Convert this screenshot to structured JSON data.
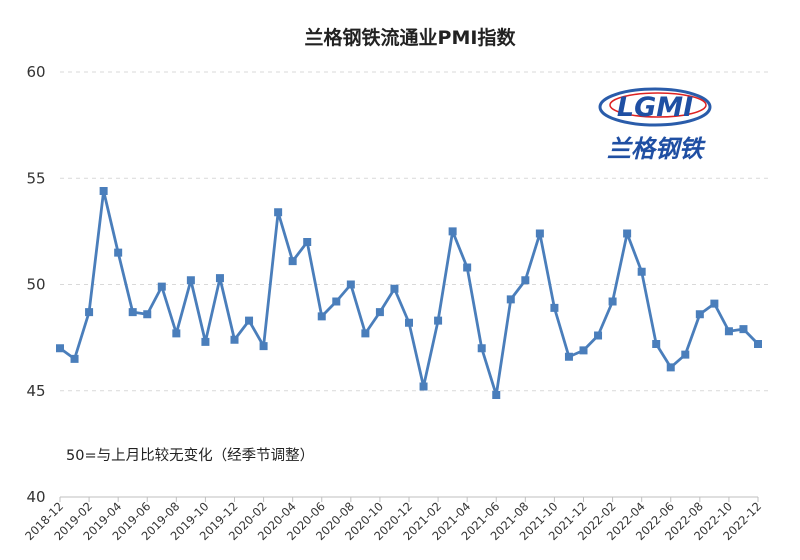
{
  "chart_data": {
    "type": "line",
    "title": "兰格钢铁流通业PMI指数",
    "annotation": "50=与上月比较无变化（经季节调整）",
    "logo_text": "LGMI 兰格钢铁",
    "ylim": [
      40,
      60
    ],
    "yticks": [
      40,
      45,
      50,
      55,
      60
    ],
    "grid": true,
    "color": "#4a7ebb",
    "marker": "square",
    "x": [
      "2018-12",
      "2019-01",
      "2019-02",
      "2019-03",
      "2019-04",
      "2019-05",
      "2019-06",
      "2019-07",
      "2019-08",
      "2019-09",
      "2019-10",
      "2019-11",
      "2019-12",
      "2020-01",
      "2020-02",
      "2020-03",
      "2020-04",
      "2020-05",
      "2020-06",
      "2020-07",
      "2020-08",
      "2020-09",
      "2020-10",
      "2020-11",
      "2020-12",
      "2021-01",
      "2021-02",
      "2021-03",
      "2021-04",
      "2021-05",
      "2021-06",
      "2021-07",
      "2021-08",
      "2021-09",
      "2021-10",
      "2021-11",
      "2021-12",
      "2022-01",
      "2022-02",
      "2022-03",
      "2022-04",
      "2022-05",
      "2022-06",
      "2022-07",
      "2022-08",
      "2022-09",
      "2022-10",
      "2022-11",
      "2022-12"
    ],
    "xticklabels": [
      "2018-12",
      "2019-02",
      "2019-04",
      "2019-06",
      "2019-08",
      "2019-10",
      "2019-12",
      "2020-02",
      "2020-04",
      "2020-06",
      "2020-08",
      "2020-10",
      "2020-12",
      "2021-02",
      "2021-04",
      "2021-06",
      "2021-08",
      "2021-10",
      "2021-12",
      "2022-02",
      "2022-04",
      "2022-06",
      "2022-08",
      "2022-10",
      "2022-12"
    ],
    "values": [
      47.0,
      46.5,
      48.7,
      54.4,
      51.5,
      48.7,
      48.6,
      49.9,
      47.7,
      50.2,
      47.3,
      50.3,
      47.4,
      48.3,
      47.1,
      53.4,
      51.1,
      52.0,
      48.5,
      49.2,
      50.0,
      47.7,
      48.7,
      49.8,
      48.2,
      45.2,
      48.3,
      52.5,
      50.8,
      47.0,
      44.8,
      49.3,
      50.2,
      52.4,
      48.9,
      46.6,
      46.9,
      47.6,
      49.2,
      52.4,
      50.6,
      47.2,
      46.1,
      46.7,
      48.6,
      49.1,
      47.8,
      47.9,
      47.2
    ]
  }
}
